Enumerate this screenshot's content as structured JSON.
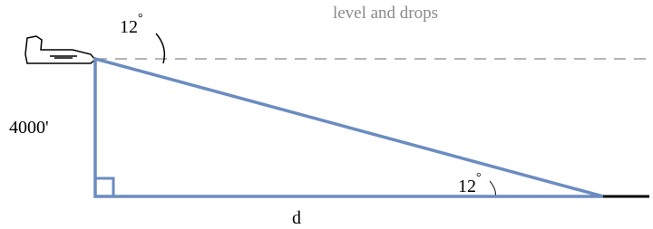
{
  "caption": "level and drops",
  "height_label": "4000'",
  "distance_label": "d",
  "angles": [
    {
      "number": "12",
      "unit": "°"
    },
    {
      "number": "12",
      "unit": "°"
    }
  ]
}
